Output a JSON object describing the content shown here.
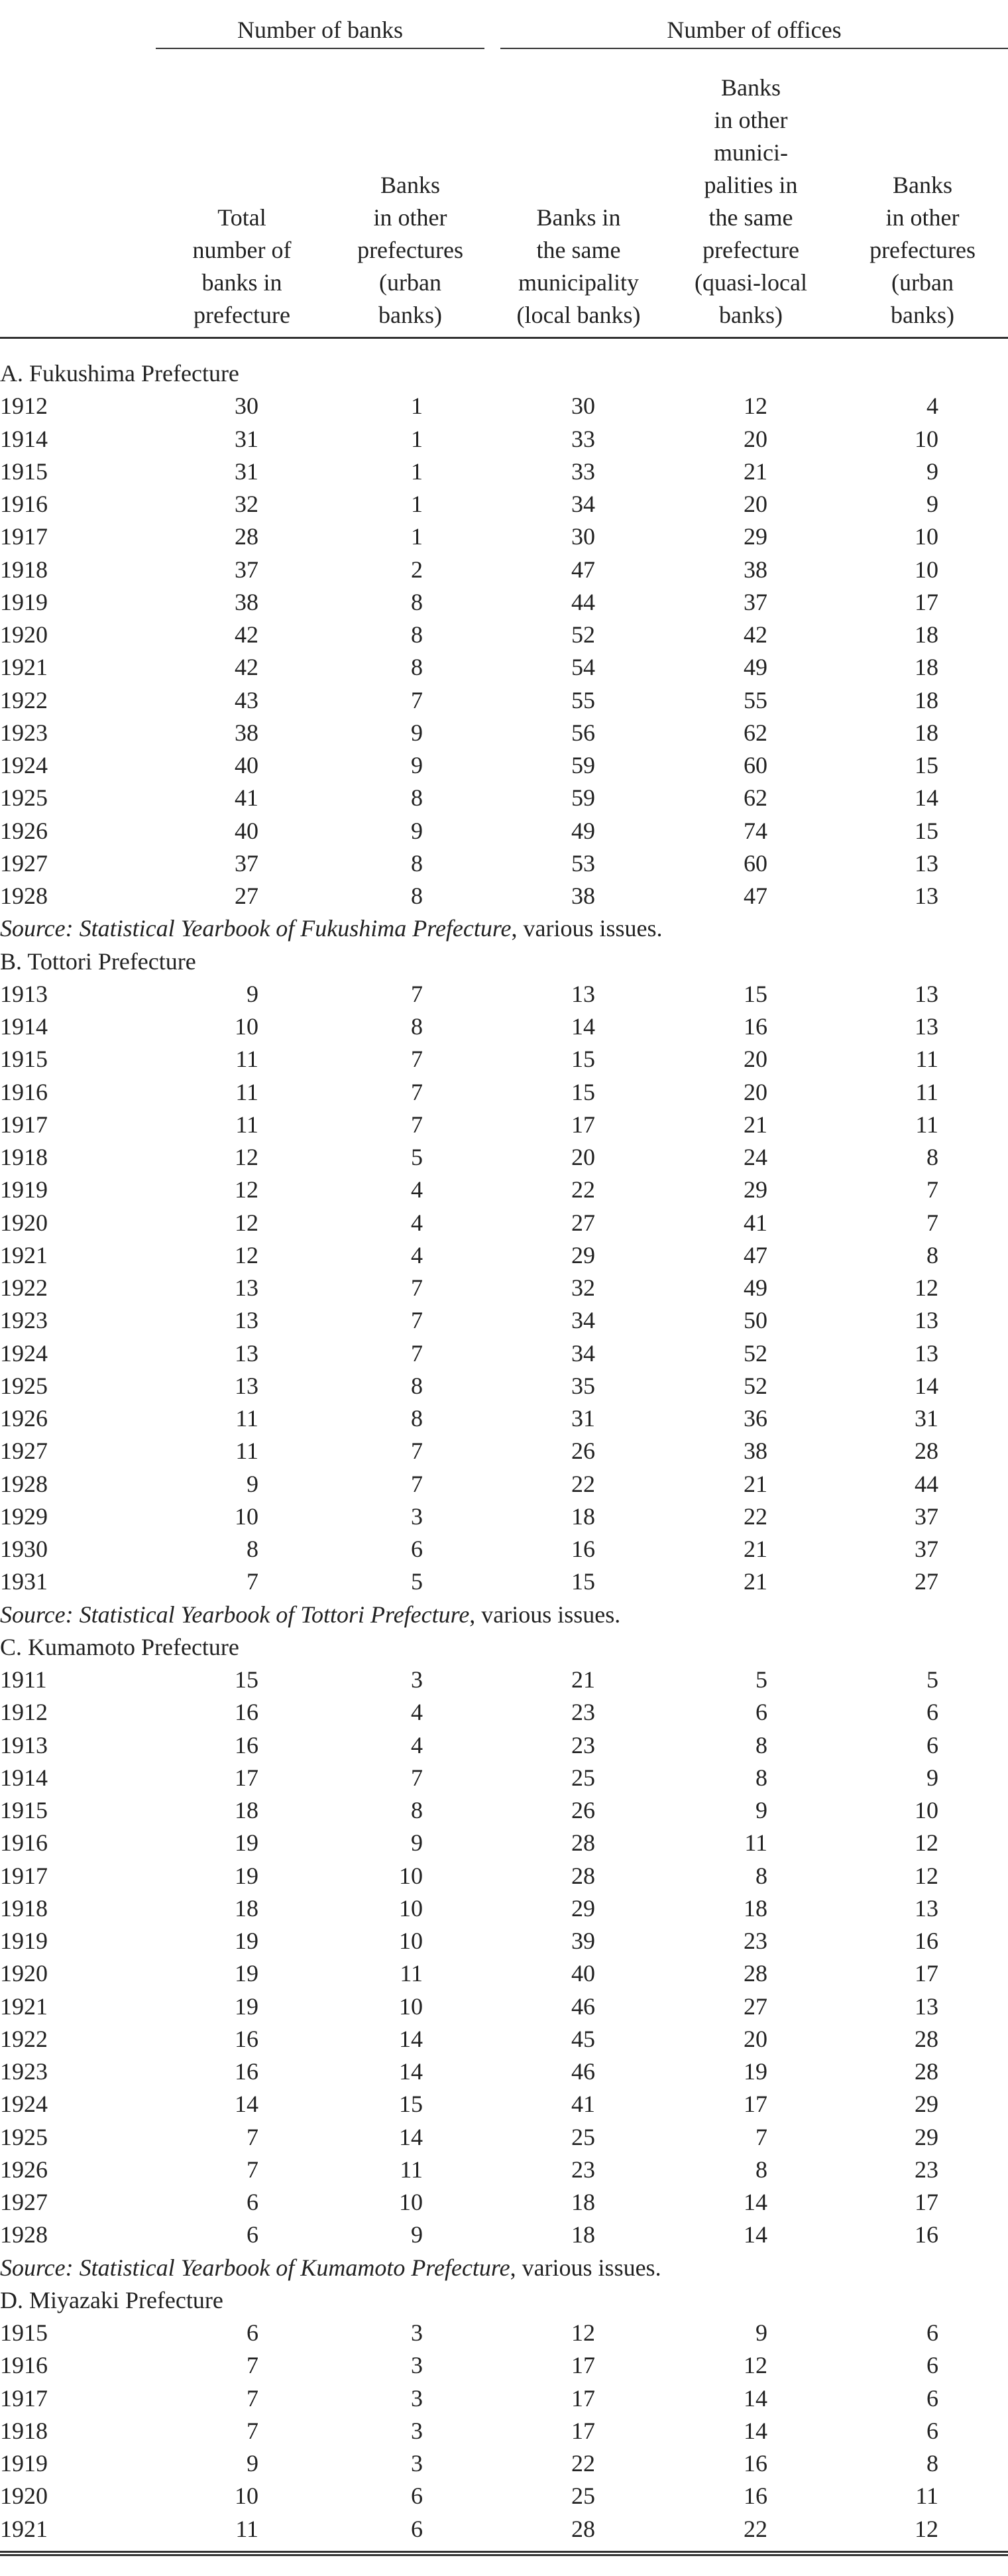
{
  "header": {
    "groups": [
      "Number of banks",
      "Number of offices"
    ],
    "columns": [
      [
        "Total",
        "number of",
        "banks in",
        "prefecture"
      ],
      [
        "Banks",
        "in other",
        "prefectures",
        "(urban",
        "banks)"
      ],
      [
        "Banks in",
        "the same",
        "municipality",
        "(local banks)"
      ],
      [
        "Banks",
        "in other",
        "munici-",
        "palities in",
        "the same",
        "prefecture",
        "(quasi-local",
        "banks)"
      ],
      [
        "Banks",
        "in other",
        "prefectures",
        "(urban",
        "banks)"
      ]
    ]
  },
  "sections": [
    {
      "title": "A. Fukushima Prefecture",
      "rows": [
        [
          1912,
          30,
          1,
          30,
          12,
          4
        ],
        [
          1914,
          31,
          1,
          33,
          20,
          10
        ],
        [
          1915,
          31,
          1,
          33,
          21,
          9
        ],
        [
          1916,
          32,
          1,
          34,
          20,
          9
        ],
        [
          1917,
          28,
          1,
          30,
          29,
          10
        ],
        [
          1918,
          37,
          2,
          47,
          38,
          10
        ],
        [
          1919,
          38,
          8,
          44,
          37,
          17
        ],
        [
          1920,
          42,
          8,
          52,
          42,
          18
        ],
        [
          1921,
          42,
          8,
          54,
          49,
          18
        ],
        [
          1922,
          43,
          7,
          55,
          55,
          18
        ],
        [
          1923,
          38,
          9,
          56,
          62,
          18
        ],
        [
          1924,
          40,
          9,
          59,
          60,
          15
        ],
        [
          1925,
          41,
          8,
          59,
          62,
          14
        ],
        [
          1926,
          40,
          9,
          49,
          74,
          15
        ],
        [
          1927,
          37,
          8,
          53,
          60,
          13
        ],
        [
          1928,
          27,
          8,
          38,
          47,
          13
        ]
      ],
      "source": {
        "italic": "Source: Statistical Yearbook of Fukushima Prefecture",
        "rest": ", various issues."
      }
    },
    {
      "title": "B. Tottori Prefecture",
      "rows": [
        [
          1913,
          9,
          7,
          13,
          15,
          13
        ],
        [
          1914,
          10,
          8,
          14,
          16,
          13
        ],
        [
          1915,
          11,
          7,
          15,
          20,
          11
        ],
        [
          1916,
          11,
          7,
          15,
          20,
          11
        ],
        [
          1917,
          11,
          7,
          17,
          21,
          11
        ],
        [
          1918,
          12,
          5,
          20,
          24,
          8
        ],
        [
          1919,
          12,
          4,
          22,
          29,
          7
        ],
        [
          1920,
          12,
          4,
          27,
          41,
          7
        ],
        [
          1921,
          12,
          4,
          29,
          47,
          8
        ],
        [
          1922,
          13,
          7,
          32,
          49,
          12
        ],
        [
          1923,
          13,
          7,
          34,
          50,
          13
        ],
        [
          1924,
          13,
          7,
          34,
          52,
          13
        ],
        [
          1925,
          13,
          8,
          35,
          52,
          14
        ],
        [
          1926,
          11,
          8,
          31,
          36,
          31
        ],
        [
          1927,
          11,
          7,
          26,
          38,
          28
        ],
        [
          1928,
          9,
          7,
          22,
          21,
          44
        ],
        [
          1929,
          10,
          3,
          18,
          22,
          37
        ],
        [
          1930,
          8,
          6,
          16,
          21,
          37
        ],
        [
          1931,
          7,
          5,
          15,
          21,
          27
        ]
      ],
      "source": {
        "italic": "Source: Statistical Yearbook of Tottori Prefecture",
        "rest": ", various issues."
      }
    },
    {
      "title": "C. Kumamoto Prefecture",
      "rows": [
        [
          1911,
          15,
          3,
          21,
          5,
          5
        ],
        [
          1912,
          16,
          4,
          23,
          6,
          6
        ],
        [
          1913,
          16,
          4,
          23,
          8,
          6
        ],
        [
          1914,
          17,
          7,
          25,
          8,
          9
        ],
        [
          1915,
          18,
          8,
          26,
          9,
          10
        ],
        [
          1916,
          19,
          9,
          28,
          11,
          12
        ],
        [
          1917,
          19,
          10,
          28,
          8,
          12
        ],
        [
          1918,
          18,
          10,
          29,
          18,
          13
        ],
        [
          1919,
          19,
          10,
          39,
          23,
          16
        ],
        [
          1920,
          19,
          11,
          40,
          28,
          17
        ],
        [
          1921,
          19,
          10,
          46,
          27,
          13
        ],
        [
          1922,
          16,
          14,
          45,
          20,
          28
        ],
        [
          1923,
          16,
          14,
          46,
          19,
          28
        ],
        [
          1924,
          14,
          15,
          41,
          17,
          29
        ],
        [
          1925,
          7,
          14,
          25,
          7,
          29
        ],
        [
          1926,
          7,
          11,
          23,
          8,
          23
        ],
        [
          1927,
          6,
          10,
          18,
          14,
          17
        ],
        [
          1928,
          6,
          9,
          18,
          14,
          16
        ]
      ],
      "source": {
        "italic": "Source: Statistical Yearbook of Kumamoto Prefecture",
        "rest": ", various issues."
      }
    },
    {
      "title": "D. Miyazaki Prefecture",
      "rows": [
        [
          1915,
          6,
          3,
          12,
          9,
          6
        ],
        [
          1916,
          7,
          3,
          17,
          12,
          6
        ],
        [
          1917,
          7,
          3,
          17,
          14,
          6
        ],
        [
          1918,
          7,
          3,
          17,
          14,
          6
        ],
        [
          1919,
          9,
          3,
          22,
          16,
          8
        ],
        [
          1920,
          10,
          6,
          25,
          16,
          11
        ],
        [
          1921,
          11,
          6,
          28,
          22,
          12
        ]
      ]
    }
  ]
}
